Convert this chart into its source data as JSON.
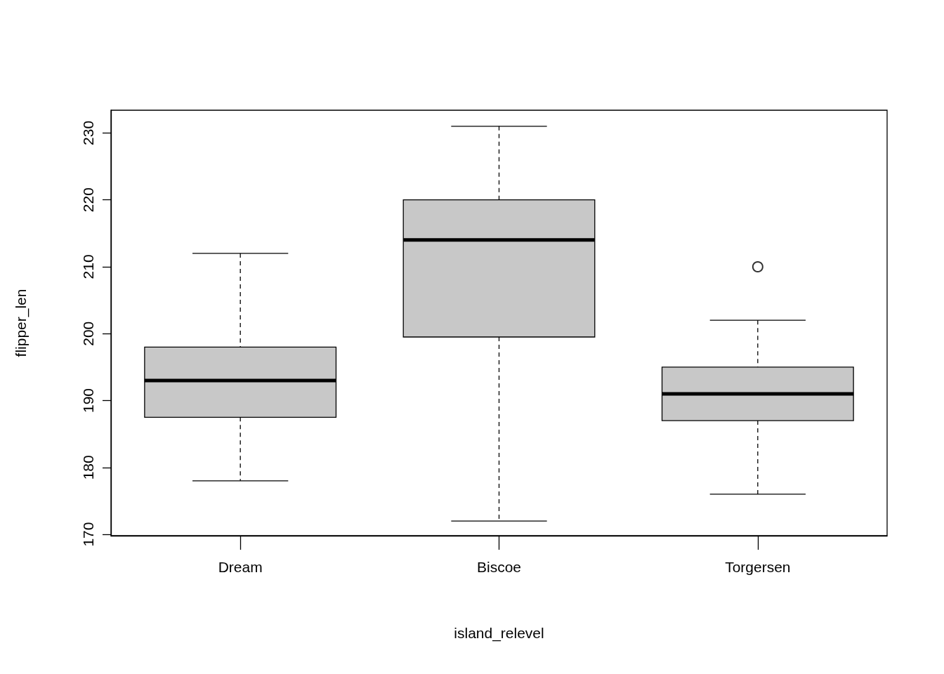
{
  "chart_data": {
    "type": "box",
    "xlabel": "island_relevel",
    "ylabel": "flipper_len",
    "categories": [
      "Dream",
      "Biscoe",
      "Torgersen"
    ],
    "boxes": [
      {
        "low": 178,
        "q1": 187.5,
        "median": 193,
        "q3": 198,
        "high": 212
      },
      {
        "low": 172,
        "q1": 199.5,
        "median": 214,
        "q3": 220,
        "high": 231
      },
      {
        "low": 176,
        "q1": 187,
        "median": 191,
        "q3": 195,
        "high": 202,
        "outliers": [
          210
        ]
      }
    ],
    "color": "#c8c8c8",
    "ylim": [
      169.8,
      233.4
    ],
    "yticks": [
      170,
      180,
      190,
      200,
      210,
      220,
      230
    ]
  }
}
